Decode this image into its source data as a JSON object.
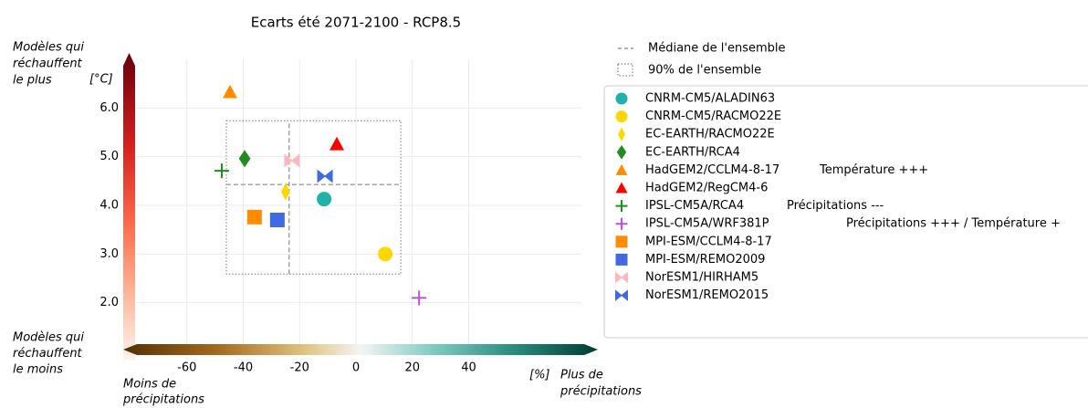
{
  "chart_data": {
    "type": "scatter",
    "title": "Ecarts été 2071-2100 - RCP8.5",
    "y_top_label": [
      "Modèles qui",
      "réchauffent",
      "le plus"
    ],
    "y_bottom_label": [
      "Modèles qui",
      "réchauffent",
      "le moins"
    ],
    "y_unit": "[°C]",
    "x_left_label": [
      "Moins de",
      "précipitations"
    ],
    "x_unit": "[%]",
    "x_right_label": [
      "Plus de",
      "précipitations"
    ],
    "xlim": [
      -80,
      80
    ],
    "ylim": [
      1,
      7
    ],
    "xticks": [
      -60,
      -40,
      -20,
      0,
      20,
      40
    ],
    "yticks": [
      {
        "value": 2,
        "label": "2.0"
      },
      {
        "value": 3,
        "label": "3.0"
      },
      {
        "value": 4,
        "label": "4.0"
      },
      {
        "value": 5,
        "label": "5.0"
      },
      {
        "value": 6,
        "label": "6.0"
      }
    ],
    "grid": true,
    "median": {
      "name": "Médiane de l'ensemble",
      "x": -23.7,
      "y": 4.43
    },
    "range90": {
      "name": "90% de l'ensemble",
      "xlim": [
        -46,
        15.9
      ],
      "ylim": [
        2.59,
        5.74
      ]
    },
    "series": [
      {
        "name": "CNRM-CM5/ALADIN63",
        "color": "#20b2aa",
        "marker": "circle",
        "x": [
          -11.3
        ],
        "values": [
          4.13
        ]
      },
      {
        "name": "CNRM-CM5/RACMO22E",
        "color": "#ffd700",
        "marker": "circle",
        "x": [
          10.4
        ],
        "values": [
          3.0
        ]
      },
      {
        "name": "EC-EARTH/RACMO22E",
        "color": "#ffd700",
        "marker": "thin-diamond",
        "x": [
          -25
        ],
        "values": [
          4.28
        ]
      },
      {
        "name": "EC-EARTH/RCA4",
        "color": "#228b22",
        "marker": "diamond",
        "x": [
          -39.5
        ],
        "values": [
          4.96
        ]
      },
      {
        "name": "HadGEM2/CCLM4-8-17",
        "color": "#ff8c00",
        "marker": "triangle",
        "x": [
          -44.7
        ],
        "values": [
          6.33
        ],
        "annotation": "Température +++"
      },
      {
        "name": "HadGEM2/RegCM4-6",
        "color": "#ff0000",
        "marker": "triangle",
        "x": [
          -6.8
        ],
        "values": [
          5.26
        ]
      },
      {
        "name": "IPSL-CM5A/RCA4",
        "color": "#228b22",
        "marker": "plus",
        "x": [
          -47.6
        ],
        "values": [
          4.71
        ],
        "annotation": "Précipitations ---"
      },
      {
        "name": "IPSL-CM5A/WRF381P",
        "color": "#ba55d3",
        "marker": "plus",
        "x": [
          22.4
        ],
        "values": [
          2.1
        ],
        "annotation": "Précipitations +++ / Température +"
      },
      {
        "name": "MPI-ESM/CCLM4-8-17",
        "color": "#ff8c00",
        "marker": "square",
        "x": [
          -36
        ],
        "values": [
          3.76
        ]
      },
      {
        "name": "MPI-ESM/REMO2009",
        "color": "#4169e1",
        "marker": "square",
        "x": [
          -27.9
        ],
        "values": [
          3.7
        ]
      },
      {
        "name": "NorESM1/HIRHAM5",
        "color": "#ffb6c1",
        "marker": "bowtie",
        "x": [
          -22.7
        ],
        "values": [
          4.92
        ]
      },
      {
        "name": "NorESM1/REMO2015",
        "color": "#4169e1",
        "marker": "bowtie",
        "x": [
          -11
        ],
        "values": [
          4.6
        ]
      }
    ]
  }
}
